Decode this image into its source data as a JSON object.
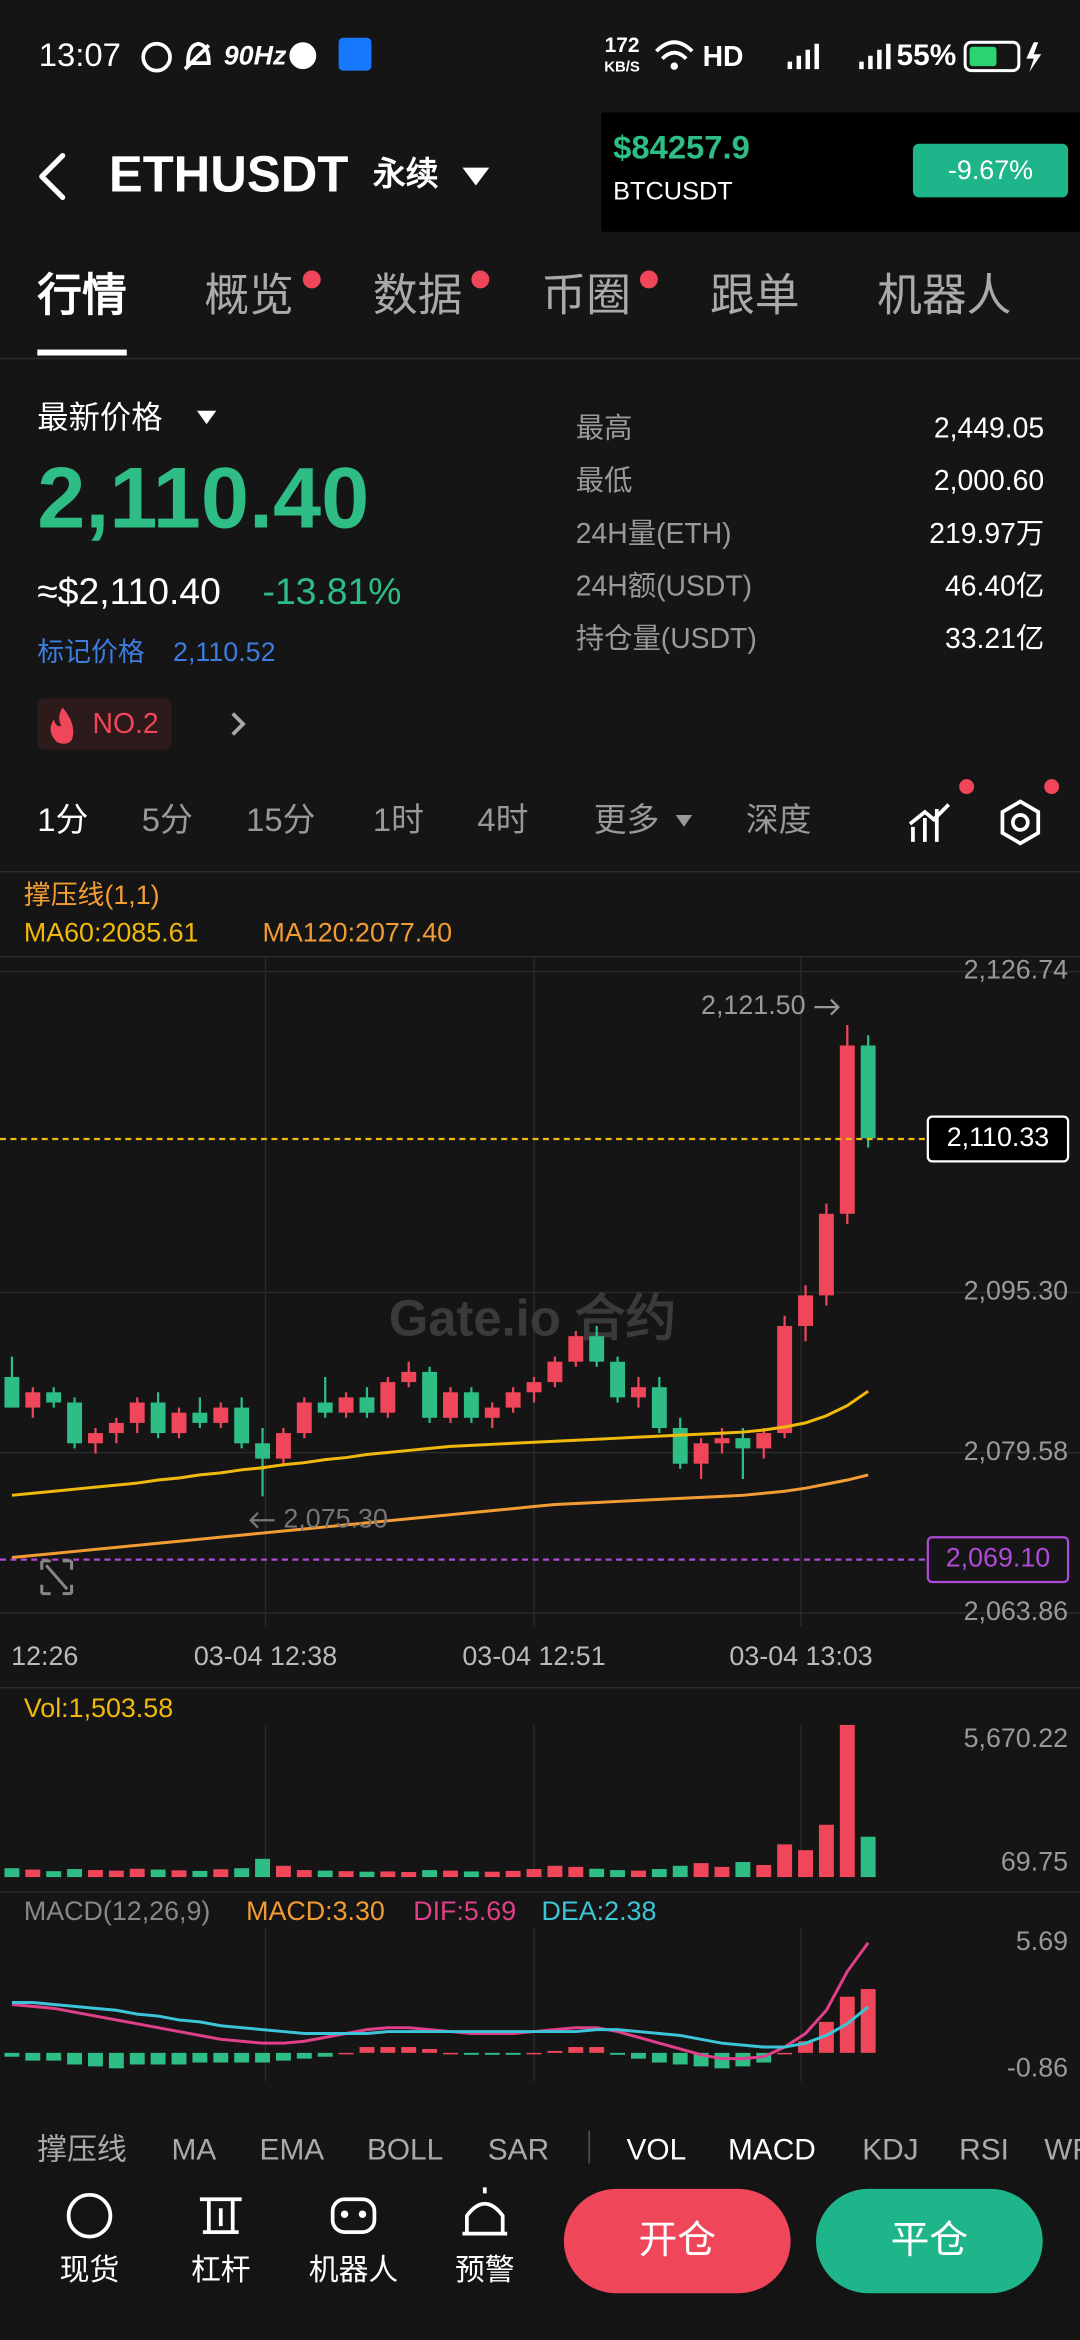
{
  "status_bar": {
    "time": "13:07",
    "refresh": "90Hz",
    "net_speed": "172",
    "net_unit": "KB/S",
    "network": "HD",
    "battery": "55%"
  },
  "header": {
    "symbol": "ETHUSDT",
    "contract": "永续"
  },
  "ticker_card": {
    "price": "$84257.9",
    "symbol": "BTCUSDT",
    "change": "-9.67%"
  },
  "tabs": [
    {
      "label": "行情",
      "dot": false
    },
    {
      "label": "概览",
      "dot": true
    },
    {
      "label": "数据",
      "dot": true
    },
    {
      "label": "币圈",
      "dot": true
    },
    {
      "label": "跟单",
      "dot": false
    },
    {
      "label": "机器人",
      "dot": false
    }
  ],
  "active_tab": 0,
  "price": {
    "label": "最新价格",
    "last": "2,110.40",
    "usd": "≈$2,110.40",
    "change": "-13.81%",
    "mark_label": "标记价格",
    "mark": "2,110.52",
    "rank": "NO.2"
  },
  "stats": [
    {
      "label": "最高",
      "value": "2,449.05"
    },
    {
      "label": "最低",
      "value": "2,000.60"
    },
    {
      "label": "24H量(ETH)",
      "value": "219.97万"
    },
    {
      "label": "24H额(USDT)",
      "value": "46.40亿"
    },
    {
      "label": "持仓量(USDT)",
      "value": "33.21亿"
    }
  ],
  "intervals": [
    "1分",
    "5分",
    "15分",
    "1时",
    "4时",
    "更多",
    "深度"
  ],
  "active_interval": 0,
  "chart_data": [
    {
      "type": "candlestick",
      "title": "撑压线(1,1)",
      "up_color": "#f0465a",
      "down_color": "#2dbd85",
      "ohlc": [
        [
          2087,
          2089,
          2084,
          2084
        ],
        [
          2084,
          2086,
          2083,
          2085.5
        ],
        [
          2085.5,
          2086,
          2084,
          2084.5
        ],
        [
          2084.5,
          2085,
          2080,
          2080.5
        ],
        [
          2080.5,
          2082,
          2079.5,
          2081.5
        ],
        [
          2081.5,
          2083,
          2080.5,
          2082.5
        ],
        [
          2082.5,
          2085,
          2081.5,
          2084.5
        ],
        [
          2084.5,
          2085.5,
          2081,
          2081.5
        ],
        [
          2081.5,
          2084,
          2081,
          2083.5
        ],
        [
          2083.5,
          2085,
          2082,
          2082.5
        ],
        [
          2082.5,
          2084.5,
          2082,
          2084
        ],
        [
          2084,
          2085,
          2080,
          2080.5
        ],
        [
          2080.5,
          2082,
          2075.3,
          2079
        ],
        [
          2079,
          2082,
          2078.5,
          2081.5
        ],
        [
          2081.5,
          2085,
          2081,
          2084.5
        ],
        [
          2084.5,
          2087,
          2083,
          2083.5
        ],
        [
          2083.5,
          2085.5,
          2083,
          2085
        ],
        [
          2085,
          2086,
          2083,
          2083.5
        ],
        [
          2083.5,
          2087,
          2083,
          2086.5
        ],
        [
          2086.5,
          2088.5,
          2086,
          2087.5
        ],
        [
          2087.5,
          2088,
          2082.5,
          2083
        ],
        [
          2083,
          2086,
          2082.5,
          2085.5
        ],
        [
          2085.5,
          2086,
          2082.5,
          2083
        ],
        [
          2083,
          2084.5,
          2082,
          2084
        ],
        [
          2084,
          2086,
          2083.5,
          2085.5
        ],
        [
          2085.5,
          2087,
          2084.5,
          2086.5
        ],
        [
          2086.5,
          2089,
          2086,
          2088.5
        ],
        [
          2088.5,
          2091.5,
          2088,
          2091
        ],
        [
          2091,
          2092,
          2088,
          2088.5
        ],
        [
          2088.5,
          2089,
          2084.5,
          2085
        ],
        [
          2085,
          2087,
          2084,
          2086
        ],
        [
          2086,
          2087,
          2081.5,
          2082
        ],
        [
          2082,
          2083,
          2078,
          2078.5
        ],
        [
          2078.5,
          2081,
          2077,
          2080.5
        ],
        [
          2080.5,
          2082,
          2079.5,
          2081
        ],
        [
          2081,
          2082,
          2077,
          2080
        ],
        [
          2080,
          2082,
          2079,
          2081.5
        ],
        [
          2081.5,
          2093,
          2081,
          2092
        ],
        [
          2092,
          2096,
          2090.5,
          2095
        ],
        [
          2095,
          2104,
          2094,
          2103
        ],
        [
          2103,
          2121.5,
          2102,
          2119.5
        ],
        [
          2119.5,
          2120.5,
          2109.5,
          2110.4
        ]
      ],
      "series": [
        {
          "name": "MA60:2085.61",
          "color": "#f0b90b",
          "values": [
            2075.4,
            2075.6,
            2075.8,
            2076.0,
            2076.2,
            2076.4,
            2076.6,
            2076.9,
            2077.1,
            2077.4,
            2077.6,
            2077.9,
            2078.1,
            2078.4,
            2078.6,
            2078.9,
            2079.1,
            2079.4,
            2079.6,
            2079.8,
            2080.0,
            2080.2,
            2080.3,
            2080.4,
            2080.5,
            2080.6,
            2080.7,
            2080.8,
            2080.9,
            2081.0,
            2081.1,
            2081.2,
            2081.3,
            2081.4,
            2081.5,
            2081.6,
            2081.8,
            2082.1,
            2082.5,
            2083.2,
            2084.2,
            2085.61
          ]
        },
        {
          "name": "MA120:2077.40",
          "color": "#f39c34",
          "values": [
            2069.3,
            2069.5,
            2069.7,
            2069.9,
            2070.1,
            2070.3,
            2070.5,
            2070.7,
            2070.9,
            2071.1,
            2071.3,
            2071.5,
            2071.7,
            2071.9,
            2072.1,
            2072.3,
            2072.5,
            2072.7,
            2072.9,
            2073.1,
            2073.3,
            2073.5,
            2073.7,
            2073.9,
            2074.1,
            2074.3,
            2074.5,
            2074.6,
            2074.7,
            2074.8,
            2074.9,
            2075.0,
            2075.1,
            2075.2,
            2075.3,
            2075.4,
            2075.6,
            2075.8,
            2076.1,
            2076.5,
            2076.9,
            2077.4
          ]
        }
      ],
      "ylim": [
        2063.86,
        2126.74
      ],
      "yticks": [
        {
          "value": 2126.74,
          "label": "2,126.74"
        },
        {
          "value": 2095.3,
          "label": "2,095.30"
        },
        {
          "value": 2079.58,
          "label": "2,079.58"
        },
        {
          "value": 2063.86,
          "label": "2,063.86"
        }
      ],
      "x_labels": [
        "12:26",
        "03-04 12:38",
        "03-04 12:51",
        "03-04 13:03"
      ],
      "high": {
        "value": 2121.5,
        "label": "2,121.50"
      },
      "low": {
        "value": 2075.3,
        "label": "2,075.30"
      },
      "last_price": {
        "value": 2110.33,
        "label": "2,110.33",
        "color": "#f0b90b"
      },
      "alert": {
        "value": 2069.1,
        "label": "2,069.10",
        "color": "#b04ad8"
      },
      "watermark": "Gate.io 合约"
    },
    {
      "type": "bar",
      "title": "Vol:1,503.58",
      "values": [
        330,
        280,
        220,
        300,
        260,
        240,
        310,
        280,
        250,
        230,
        290,
        330,
        680,
        420,
        260,
        240,
        220,
        200,
        210,
        190,
        260,
        240,
        210,
        200,
        230,
        300,
        420,
        380,
        310,
        260,
        240,
        300,
        420,
        520,
        380,
        560,
        450,
        1220,
        1000,
        1950,
        5670.22,
        1503.58
      ],
      "ylim": [
        0,
        5670.22
      ],
      "yticks": [
        {
          "value": 5670.22,
          "label": "5,670.22"
        },
        69.75
      ]
    },
    {
      "type": "macd",
      "title": "MACD(12,26,9)",
      "histogram": {
        "name": "MACD:3.30",
        "color": "#f39c34",
        "values": [
          -0.2,
          -0.4,
          -0.4,
          -0.6,
          -0.7,
          -0.8,
          -0.6,
          -0.6,
          -0.6,
          -0.5,
          -0.5,
          -0.5,
          -0.5,
          -0.4,
          -0.3,
          -0.2,
          0,
          0.3,
          0.3,
          0.3,
          0.2,
          0,
          -0.1,
          -0.1,
          -0.1,
          0,
          0.1,
          0.3,
          0.3,
          -0.1,
          -0.3,
          -0.5,
          -0.6,
          -0.7,
          -0.8,
          -0.7,
          -0.5,
          0,
          0.6,
          1.6,
          2.9,
          3.3
        ]
      },
      "series": [
        {
          "name": "DIF:5.69",
          "color": "#e0408a",
          "values": [
            2.5,
            2.4,
            2.3,
            2.1,
            1.9,
            1.7,
            1.5,
            1.3,
            1.1,
            0.9,
            0.7,
            0.6,
            0.5,
            0.5,
            0.6,
            0.8,
            1.0,
            1.2,
            1.3,
            1.3,
            1.2,
            1.1,
            1.0,
            1.0,
            1.0,
            1.1,
            1.2,
            1.3,
            1.3,
            1.1,
            0.8,
            0.5,
            0.2,
            -0.1,
            -0.3,
            -0.3,
            -0.2,
            0.3,
            1.0,
            2.2,
            4.2,
            5.69
          ]
        },
        {
          "name": "DEA:2.38",
          "color": "#3cc4d8",
          "values": [
            2.6,
            2.6,
            2.5,
            2.4,
            2.3,
            2.2,
            2.0,
            1.9,
            1.7,
            1.6,
            1.4,
            1.3,
            1.2,
            1.1,
            1.0,
            1.0,
            1.0,
            1.0,
            1.1,
            1.1,
            1.1,
            1.1,
            1.1,
            1.1,
            1.1,
            1.1,
            1.1,
            1.1,
            1.2,
            1.2,
            1.1,
            1.0,
            0.9,
            0.7,
            0.5,
            0.4,
            0.3,
            0.3,
            0.5,
            0.9,
            1.5,
            2.38
          ]
        }
      ],
      "ylim": [
        -0.86,
        5.69
      ],
      "yticks": [
        5.69,
        -0.86
      ]
    }
  ],
  "indicators": [
    "撑压线",
    "MA",
    "EMA",
    "BOLL",
    "SAR",
    "VOL",
    "MACD",
    "KDJ",
    "RSI",
    "WR"
  ],
  "nav": [
    "现货",
    "杠杆",
    "机器人",
    "预警"
  ],
  "buttons": {
    "open": "开仓",
    "close": "平仓"
  }
}
